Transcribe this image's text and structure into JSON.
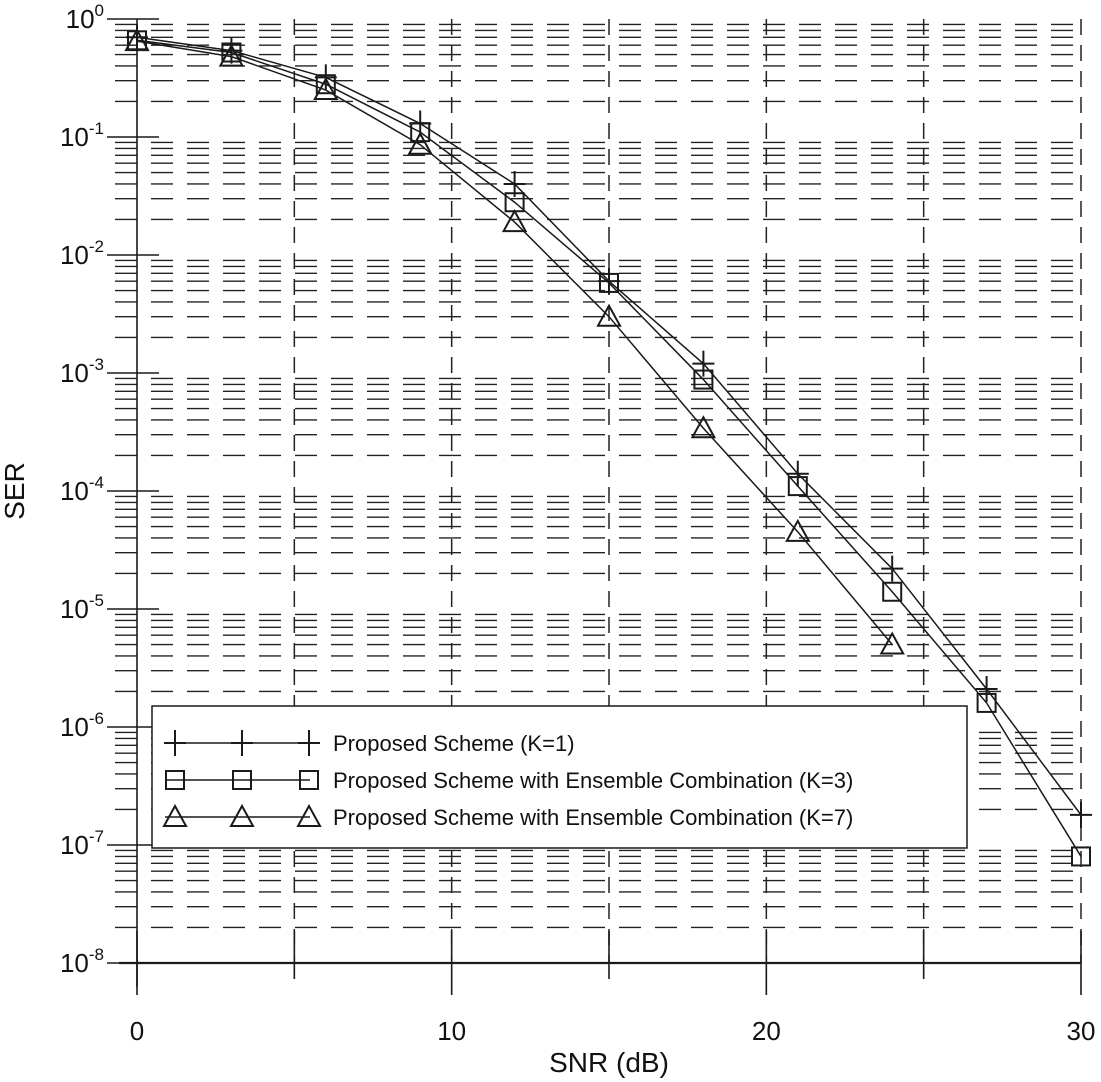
{
  "chart_data": {
    "type": "line",
    "title": "",
    "xlabel": "SNR (dB)",
    "ylabel": "SER",
    "xscale": "linear",
    "yscale": "log",
    "xlim": [
      0,
      30
    ],
    "ylim": [
      1e-08,
      1
    ],
    "x_ticks": [
      0,
      10,
      20,
      30
    ],
    "x_tick_labels": [
      "0",
      "10",
      "20",
      "30"
    ],
    "y_ticks": [
      1,
      0.1,
      0.01,
      0.001,
      0.0001,
      1e-05,
      1e-06,
      1e-07,
      1e-08
    ],
    "y_tick_labels": [
      {
        "base": "10",
        "exp": "0"
      },
      {
        "base": "10",
        "exp": "-1"
      },
      {
        "base": "10",
        "exp": "-2"
      },
      {
        "base": "10",
        "exp": "-3"
      },
      {
        "base": "10",
        "exp": "-4"
      },
      {
        "base": "10",
        "exp": "-5"
      },
      {
        "base": "10",
        "exp": "-6"
      },
      {
        "base": "10",
        "exp": "-7"
      },
      {
        "base": "10",
        "exp": "-8"
      }
    ],
    "grid": true,
    "legend_position": "lower left",
    "series": [
      {
        "name": "Proposed Scheme (K=1)",
        "marker": "plus",
        "x": [
          0,
          3,
          6,
          9,
          12,
          15,
          18,
          21,
          24,
          27,
          30
        ],
        "values": [
          0.7,
          0.54,
          0.32,
          0.13,
          0.04,
          0.006,
          0.0012,
          0.00014,
          2.2e-05,
          2.1e-06,
          1.8e-07
        ]
      },
      {
        "name": "Proposed Scheme with Ensemble Combination (K=3)",
        "marker": "square",
        "x": [
          0,
          3,
          6,
          9,
          12,
          15,
          18,
          21,
          24,
          27,
          30
        ],
        "values": [
          0.66,
          0.52,
          0.28,
          0.11,
          0.028,
          0.0058,
          0.00088,
          0.00011,
          1.4e-05,
          1.6e-06,
          8e-08
        ]
      },
      {
        "name": "Proposed Scheme with Ensemble Combination (K=7)",
        "marker": "triangle",
        "x": [
          0,
          3,
          6,
          9,
          12,
          15,
          18,
          21,
          24
        ],
        "values": [
          0.65,
          0.48,
          0.25,
          0.086,
          0.019,
          0.003,
          0.00034,
          4.5e-05,
          5e-06
        ]
      }
    ]
  },
  "colors": {
    "line": "#1a1a1a",
    "grid": "#222222",
    "background": "#ffffff"
  }
}
